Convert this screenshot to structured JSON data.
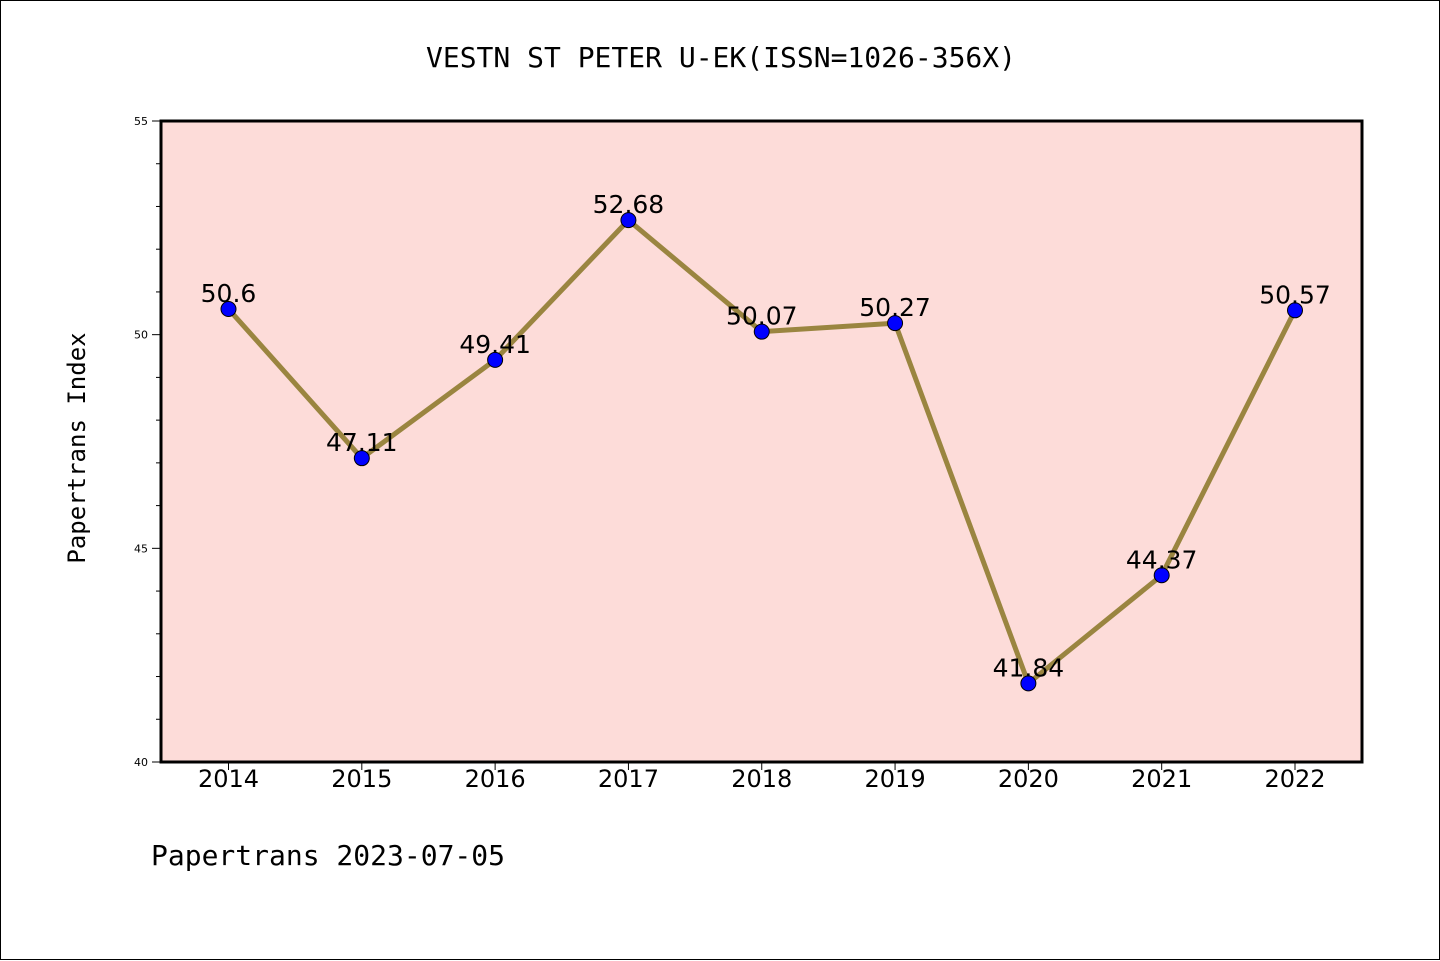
{
  "chart_data": {
    "type": "line",
    "title": "VESTN ST PETER U-EK(ISSN=1026-356X)",
    "ylabel": "Papertrans Index",
    "xlabel": "",
    "categories": [
      "2014",
      "2015",
      "2016",
      "2017",
      "2018",
      "2019",
      "2020",
      "2021",
      "2022"
    ],
    "series": [
      {
        "values": [
          50.6,
          47.11,
          49.41,
          52.68,
          50.07,
          50.27,
          41.84,
          44.37,
          50.57
        ],
        "labels": [
          "50.6",
          "47.11",
          "49.41",
          "52.68",
          "50.07",
          "50.27",
          "41.84",
          "44.37",
          "50.57"
        ]
      }
    ],
    "ylim": [
      40,
      55
    ],
    "yticks": [
      "40",
      "45",
      "50",
      "55"
    ],
    "grid": false,
    "legend": "none",
    "footer": "Papertrans 2023-07-05",
    "colors": {
      "plot_background": "#fddcd9",
      "line": "#9a8540",
      "marker": "#0000ff",
      "axis": "#000000"
    }
  }
}
